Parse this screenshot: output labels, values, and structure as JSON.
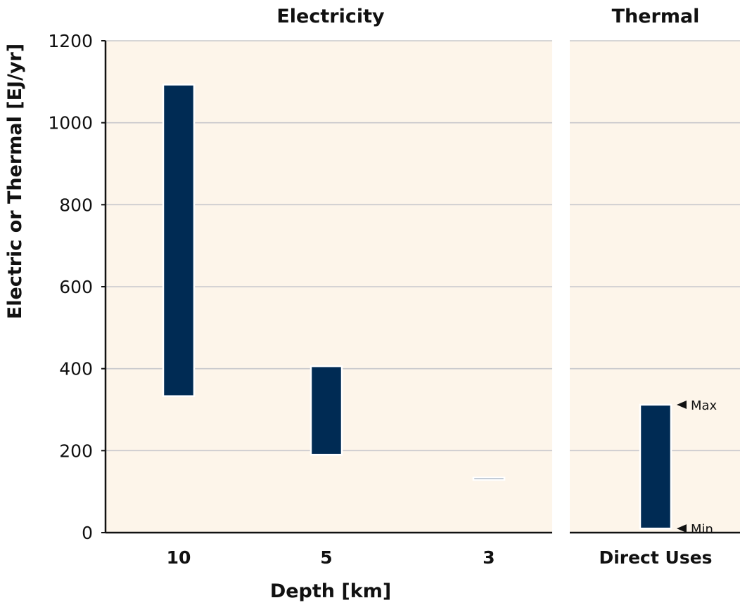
{
  "chart_data": {
    "type": "bar",
    "subtype": "floating-range",
    "ylabel": "Electric or Thermal [EJ/yr]",
    "ylim": [
      0,
      1200
    ],
    "yticks": [
      0,
      200,
      400,
      600,
      800,
      1000,
      1200
    ],
    "grid": true,
    "colors": {
      "bar": "#002b54",
      "background": "#fdf5ea",
      "grid": "#c8c8cc",
      "axis": "#111111"
    },
    "panels": [
      {
        "title": "Electricity",
        "xlabel": "Depth [km]",
        "categories": [
          "10",
          "5",
          "3"
        ],
        "ranges": [
          {
            "category": "10",
            "min": 333,
            "max": 1093
          },
          {
            "category": "5",
            "min": 190,
            "max": 406
          },
          {
            "category": "3",
            "min": 131,
            "max": 134
          }
        ]
      },
      {
        "title": "Thermal",
        "xlabel": "",
        "categories": [
          "Direct Uses"
        ],
        "ranges": [
          {
            "category": "Direct Uses",
            "min": 10,
            "max": 312
          }
        ],
        "annotations": [
          {
            "text": "Max",
            "value": 312
          },
          {
            "text": "Min",
            "value": 10
          }
        ]
      }
    ]
  }
}
